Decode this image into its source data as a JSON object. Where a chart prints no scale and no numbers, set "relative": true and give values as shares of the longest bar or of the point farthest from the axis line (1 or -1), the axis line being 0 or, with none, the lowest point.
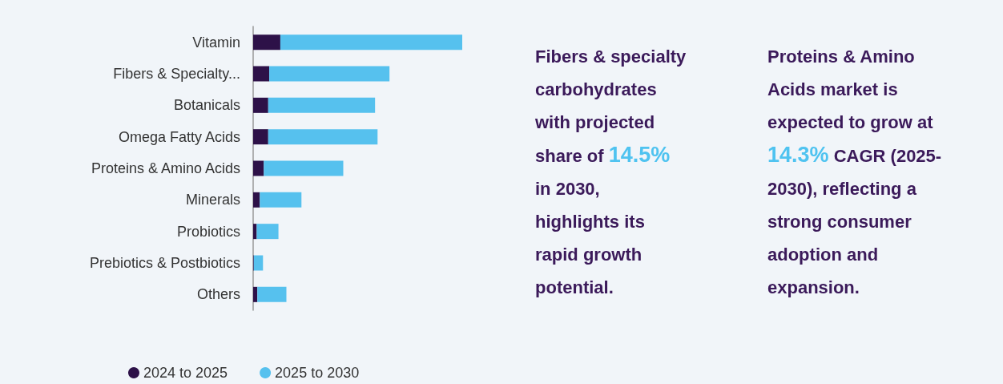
{
  "chart_data": [
    {
      "type": "bar",
      "orientation": "horizontal",
      "stacked": true,
      "relative": true,
      "categories": [
        "Vitamin",
        "Fibers & Specialty...",
        "Botanicals",
        "Omega Fatty Acids",
        "Proteins & Amino Acids",
        "Minerals",
        "Probiotics",
        "Prebiotics & Postbiotics",
        "Others"
      ],
      "series": [
        {
          "name": "2024 to 2025",
          "color": "#2d1148",
          "values": [
            0.13,
            0.077,
            0.072,
            0.072,
            0.051,
            0.032,
            0.017,
            0.003,
            0.02
          ]
        },
        {
          "name": "2025 to 2030",
          "color": "#56c1ee",
          "values": [
            0.87,
            0.575,
            0.511,
            0.523,
            0.38,
            0.199,
            0.104,
            0.044,
            0.139
          ]
        }
      ],
      "legend": "bottom left"
    },
    {
      "type": "other",
      "annotations": [
        "Fibers & specialty carbohydrates with projected share of",
        "14.5%",
        "in 2030, highlights its rapid growth potential."
      ]
    },
    {
      "type": "other",
      "annotations": [
        "Proteins & Amino Acids market is expected to grow at",
        "14.3%",
        "CAGR (2025-2030), reflecting a strong consumer adoption and expansion."
      ]
    }
  ]
}
